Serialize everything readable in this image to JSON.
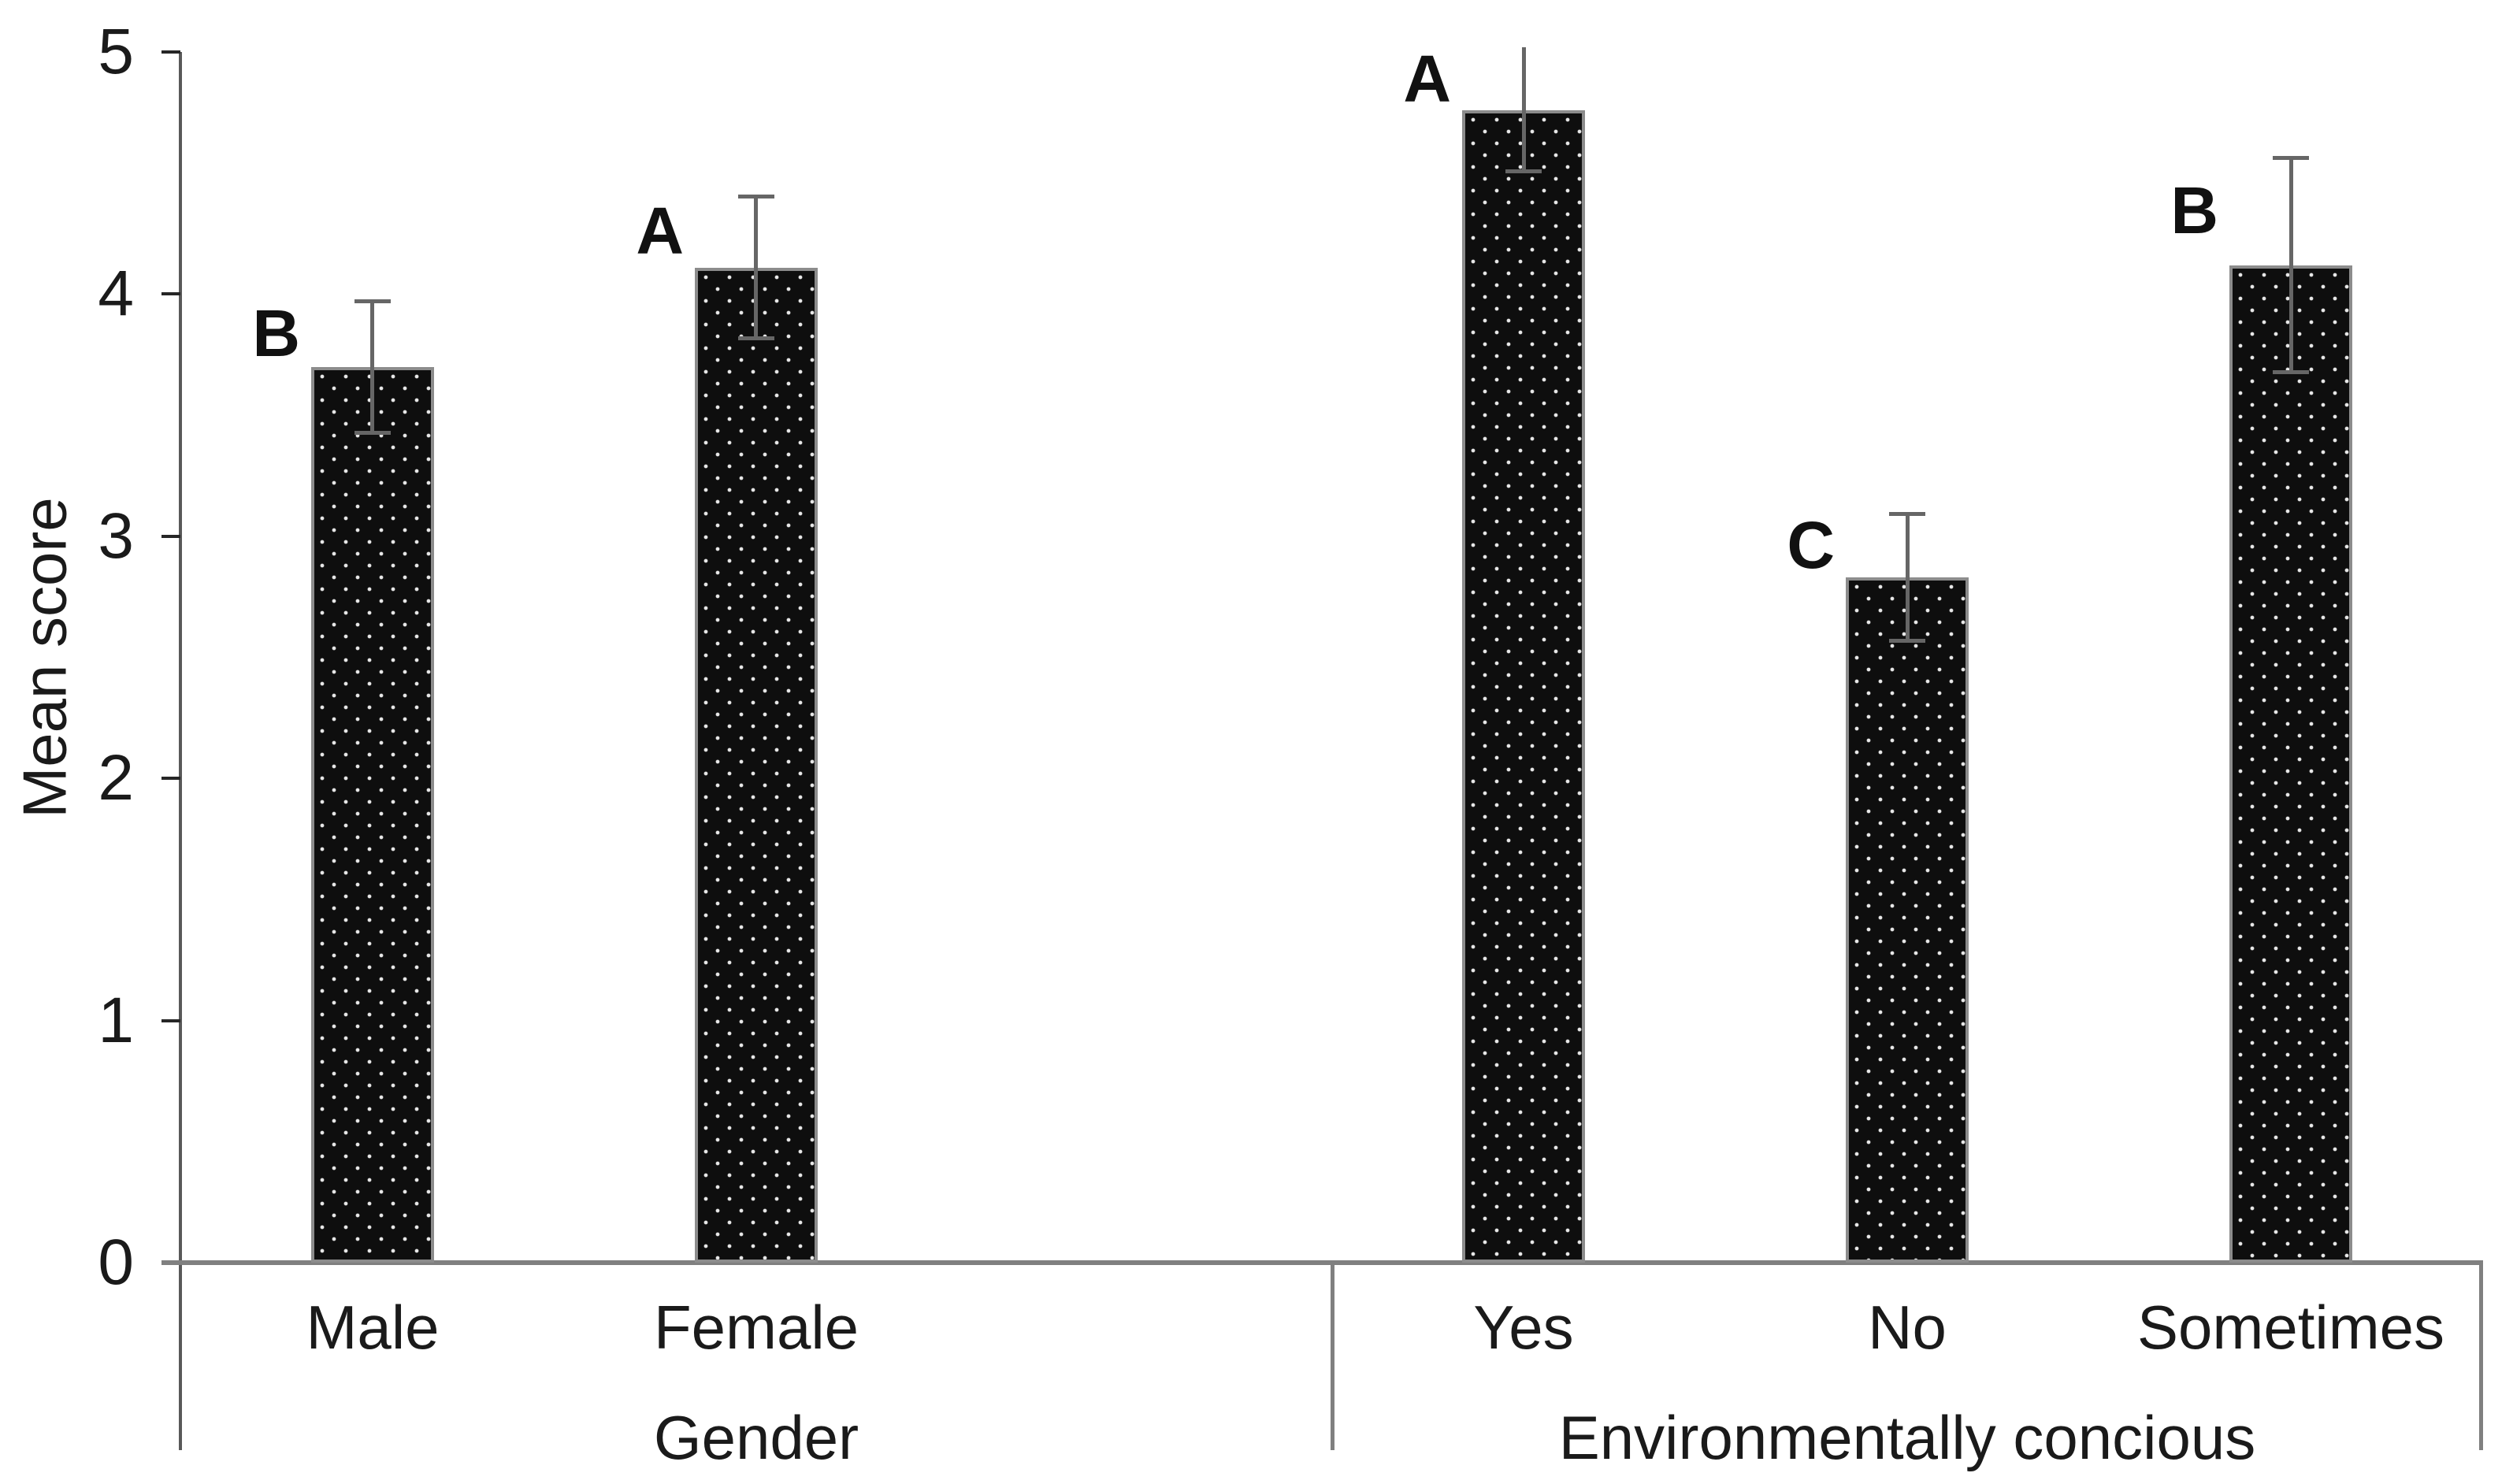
{
  "chart_data": {
    "type": "bar",
    "title": "",
    "ylabel": "Mean score",
    "xlabel": "",
    "ylim": [
      0,
      5
    ],
    "yticks": [
      5,
      4,
      3,
      2,
      1,
      0
    ],
    "grid": false,
    "legend_position": "none",
    "bar_style": "black bars with white polka-dot fill pattern, gray outline, gray error bars, significance letters left of each error bar",
    "groups": [
      {
        "label": "Gender",
        "bars": [
          {
            "category": "Male",
            "value": 3.7,
            "error": 0.28,
            "letter": "B"
          },
          {
            "category": "Female",
            "value": 4.11,
            "error": 0.3,
            "letter": "A"
          }
        ]
      },
      {
        "label": "Environmentally concious",
        "bars": [
          {
            "category": "Yes",
            "value": 4.76,
            "error": 0.26,
            "letter": "A"
          },
          {
            "category": "No",
            "value": 2.83,
            "error": 0.27,
            "letter": "C"
          },
          {
            "category": "Sometimes",
            "value": 4.12,
            "error": 0.45,
            "letter": "B"
          }
        ]
      }
    ]
  },
  "colors": {
    "background": "#ffffff",
    "bar_fill": "#0e0e0e",
    "bar_dots": "#e8e8e8",
    "bar_outline": "#8c8c8c",
    "error_bar": "#666666",
    "axis_line": "#595959",
    "baseline": "#808080",
    "text": "#1a1a1a"
  }
}
